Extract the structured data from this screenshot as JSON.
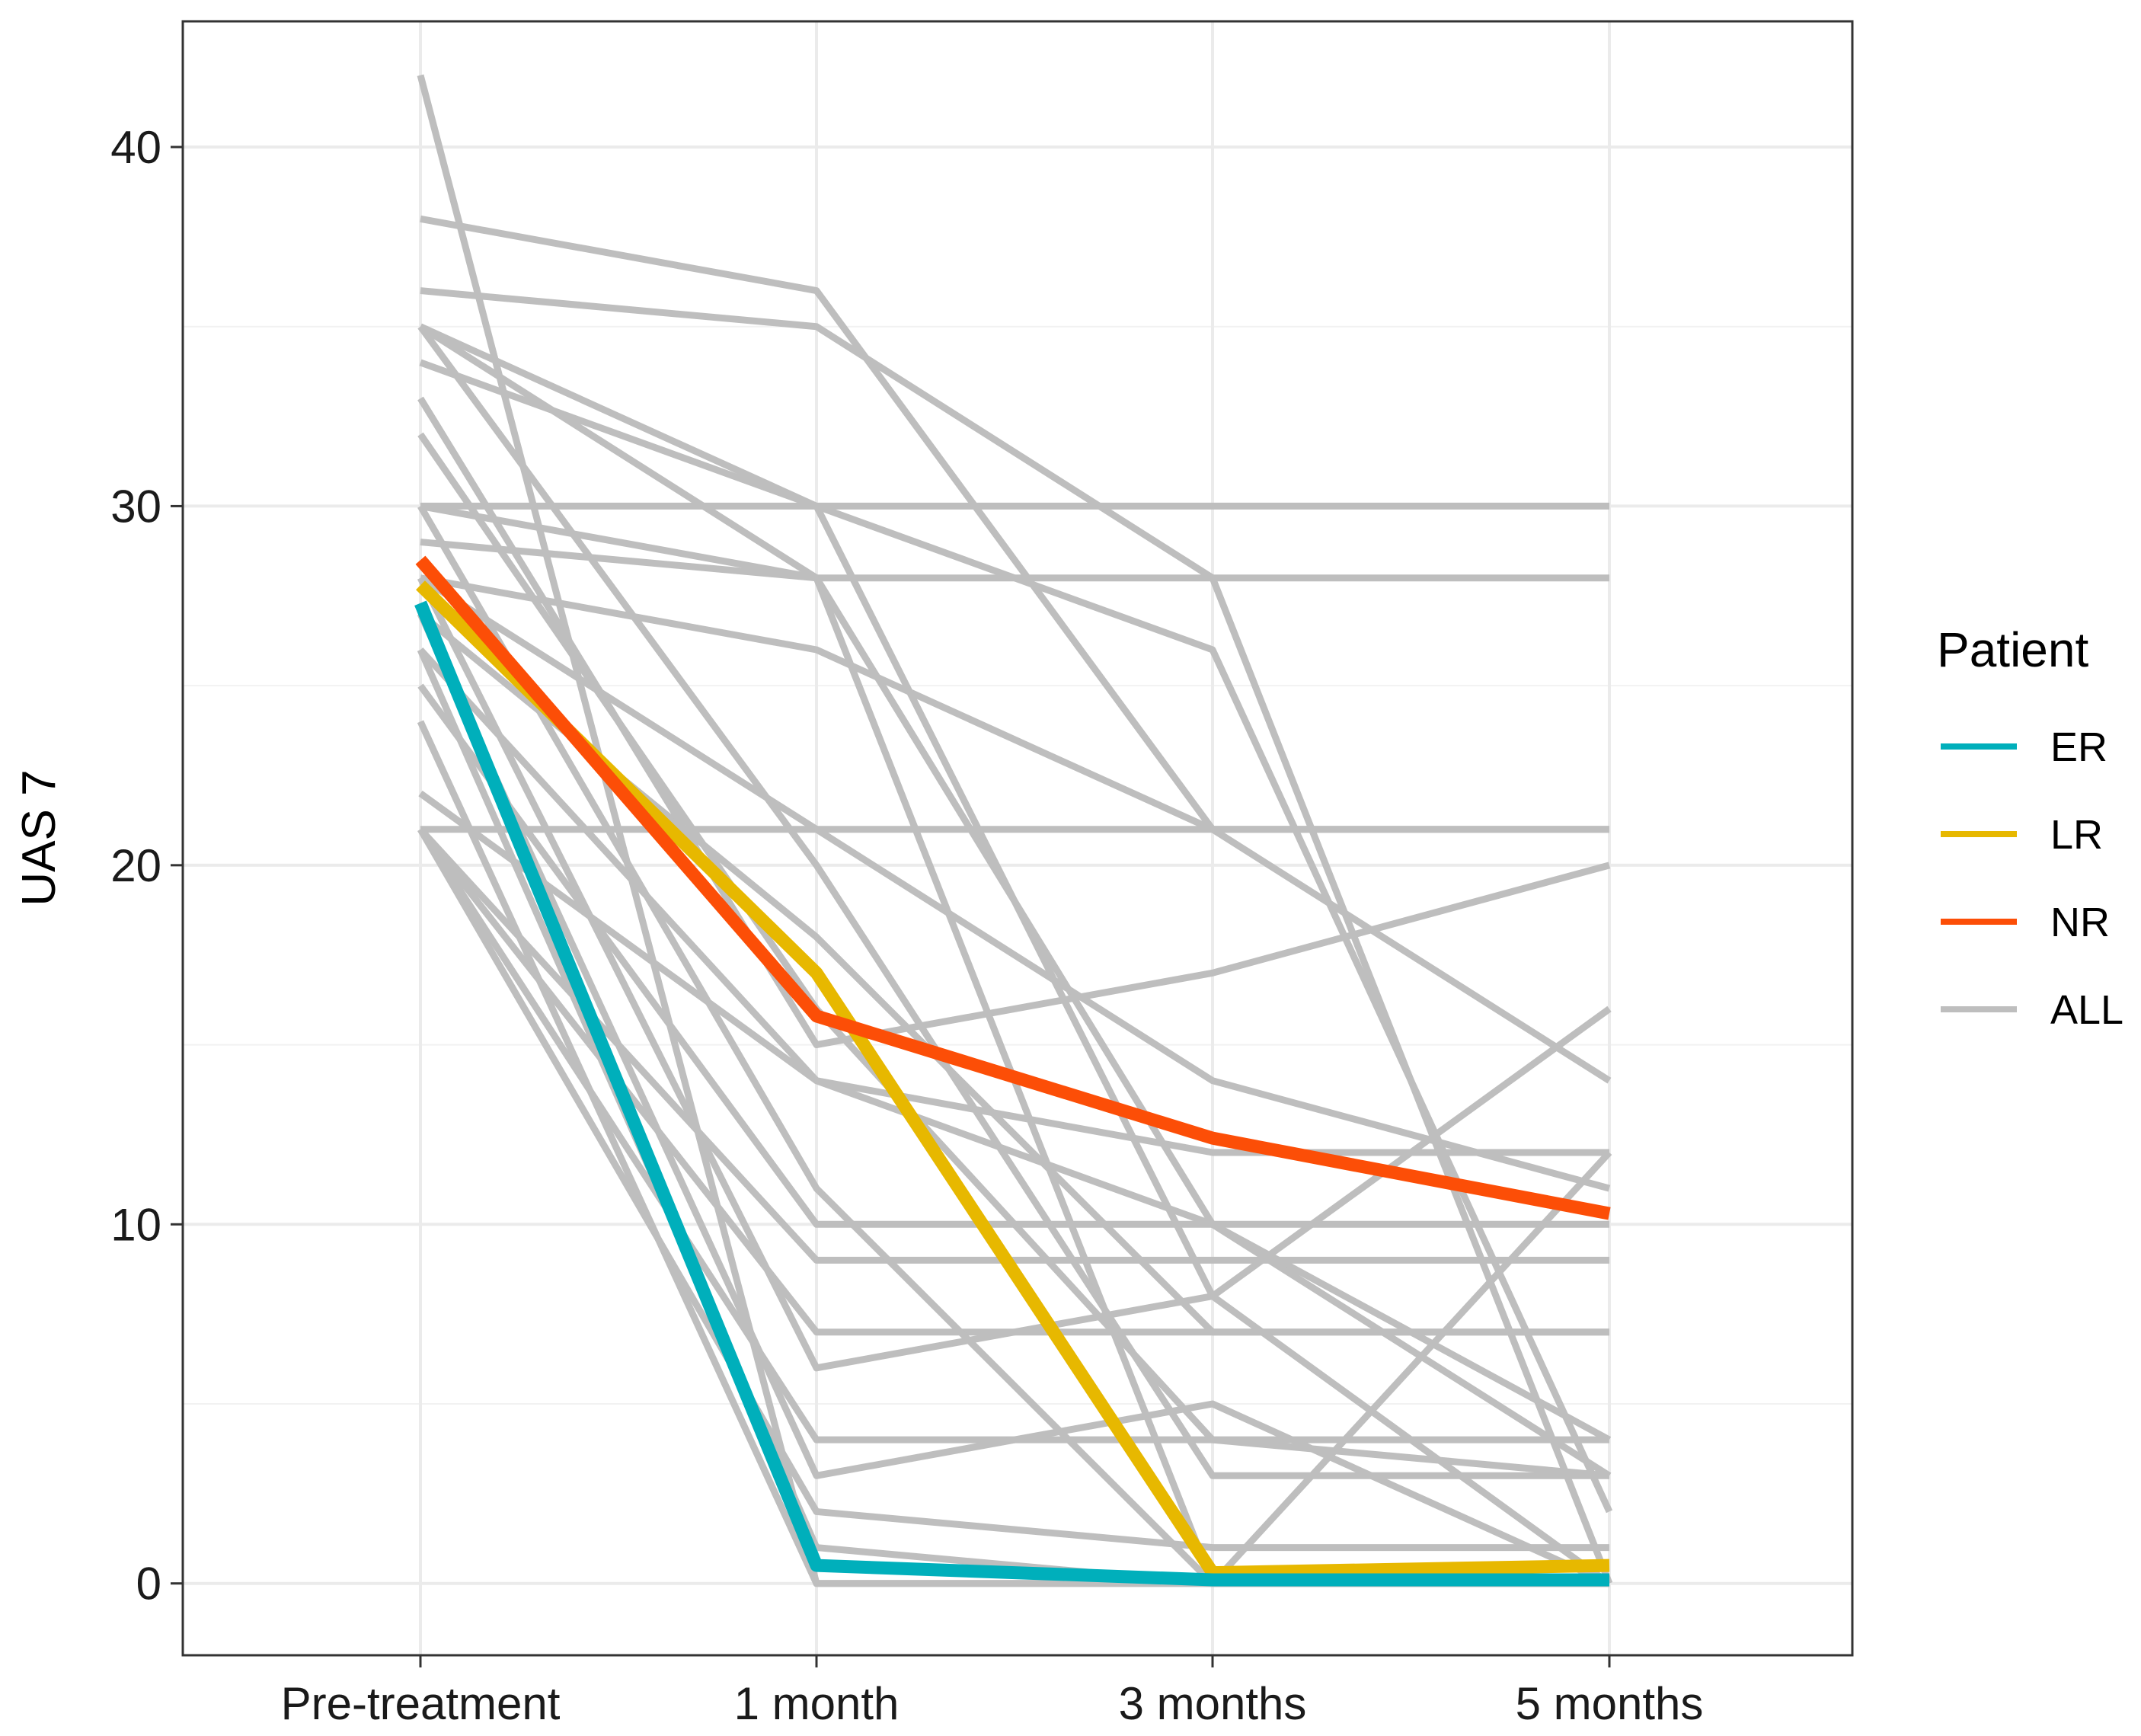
{
  "chart_data": {
    "type": "line",
    "title": "",
    "xlabel": "",
    "ylabel": "UAS 7",
    "categories": [
      "Pre-treatment",
      "1 month",
      "3 months",
      "5 months"
    ],
    "ylim": [
      -2,
      43.5
    ],
    "yticks": [
      0,
      10,
      20,
      30,
      40
    ],
    "grid": true,
    "legend": {
      "title": "Patient",
      "position": "right",
      "entries": [
        {
          "label": "ER",
          "color": "#00AFBB"
        },
        {
          "label": "LR",
          "color": "#E7B800"
        },
        {
          "label": "NR",
          "color": "#FC4E07"
        },
        {
          "label": "ALL",
          "color": "#BEBEBE"
        }
      ]
    },
    "individual_series_color": "#BEBEBE",
    "individual_series": [
      [
        42,
        0,
        0,
        0
      ],
      [
        38,
        36,
        21,
        14
      ],
      [
        36,
        35,
        28,
        0
      ],
      [
        35,
        30,
        26,
        2
      ],
      [
        35,
        28,
        0,
        12
      ],
      [
        34,
        30,
        8,
        0
      ],
      [
        32,
        16,
        4,
        3
      ],
      [
        30,
        30,
        30,
        30
      ],
      [
        30,
        28,
        28,
        28
      ],
      [
        29,
        28,
        10,
        4
      ],
      [
        28,
        26,
        21,
        21
      ],
      [
        28,
        21,
        14,
        11
      ],
      [
        27,
        18,
        7,
        7
      ],
      [
        26,
        14,
        12,
        12
      ],
      [
        25,
        10,
        10,
        10
      ],
      [
        35,
        20,
        3,
        3
      ],
      [
        21,
        21,
        21,
        21
      ],
      [
        21,
        9,
        9,
        9
      ],
      [
        21,
        7,
        7,
        7
      ],
      [
        21,
        4,
        4,
        4
      ],
      [
        21,
        2,
        1,
        1
      ],
      [
        33,
        15,
        17,
        20
      ],
      [
        30,
        11,
        0,
        0
      ],
      [
        28,
        6,
        8,
        16
      ],
      [
        27,
        3,
        5,
        0
      ],
      [
        26,
        1,
        0,
        0
      ],
      [
        24,
        0,
        0,
        0
      ],
      [
        22,
        14,
        10,
        3
      ]
    ],
    "series": [
      {
        "name": "ER",
        "color": "#00AFBB",
        "values": [
          27.3,
          0.5,
          0.1,
          0.1
        ]
      },
      {
        "name": "LR",
        "color": "#E7B800",
        "values": [
          27.8,
          17.0,
          0.3,
          0.5
        ]
      },
      {
        "name": "NR",
        "color": "#FC4E07",
        "values": [
          28.5,
          15.8,
          12.4,
          10.3
        ]
      }
    ]
  }
}
